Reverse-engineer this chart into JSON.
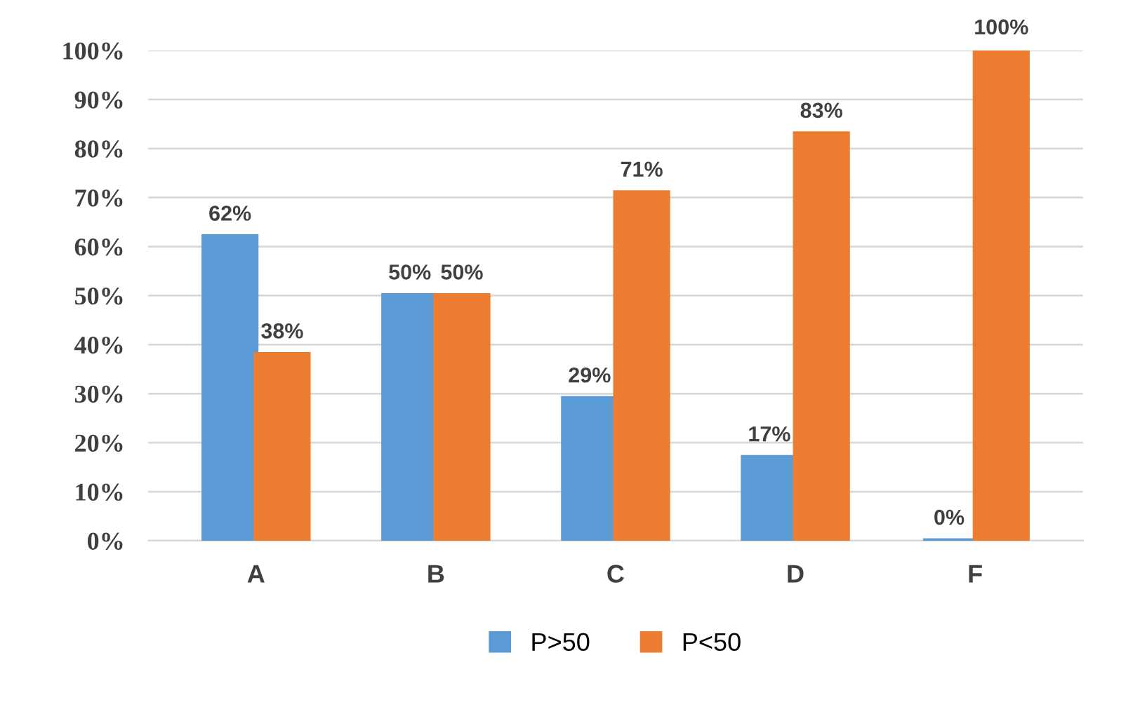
{
  "chart_data": {
    "type": "bar",
    "categories": [
      "A",
      "B",
      "C",
      "D",
      "F"
    ],
    "series": [
      {
        "name": "P>50",
        "color": "#5b9bd5",
        "values": [
          62,
          50,
          29,
          17,
          0
        ],
        "value_labels": [
          "62%",
          "50%",
          "29%",
          "17%",
          "0%"
        ]
      },
      {
        "name": "P<50",
        "color": "#ed7d31",
        "values": [
          38,
          50,
          71,
          83,
          100
        ],
        "value_labels": [
          "38%",
          "50%",
          "71%",
          "83%",
          "100%"
        ]
      }
    ],
    "ylim": [
      0,
      100
    ],
    "yticks": [
      {
        "value": 0,
        "label": "0%"
      },
      {
        "value": 10,
        "label": "10%"
      },
      {
        "value": 20,
        "label": "20%"
      },
      {
        "value": 30,
        "label": "30%"
      },
      {
        "value": 40,
        "label": "40%"
      },
      {
        "value": 50,
        "label": "50%"
      },
      {
        "value": 60,
        "label": "60%"
      },
      {
        "value": 70,
        "label": "70%"
      },
      {
        "value": 80,
        "label": "80%"
      },
      {
        "value": 90,
        "label": "90%"
      },
      {
        "value": 100,
        "label": "100%"
      }
    ],
    "grid": "y",
    "legend": "bottom"
  }
}
